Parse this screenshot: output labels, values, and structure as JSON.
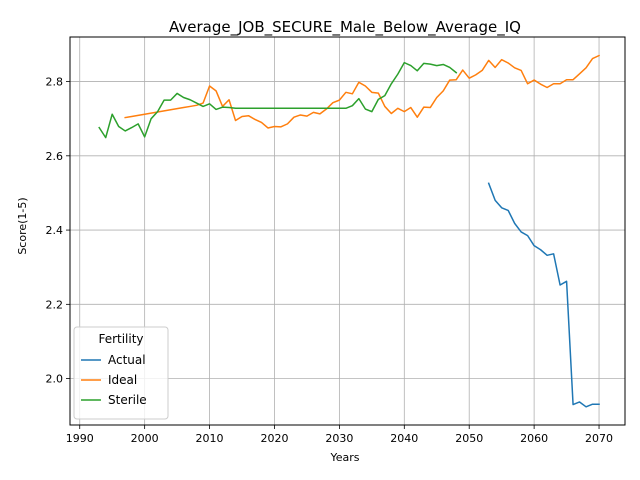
{
  "chart_data": {
    "type": "line",
    "title": "Average_JOB_SECURE_Male_Below_Average_IQ",
    "xlabel": "Years",
    "ylabel": "Score(1-5)",
    "xlim": [
      1988.5,
      2074.0
    ],
    "ylim": [
      1.875,
      2.92
    ],
    "x_ticks": [
      1990,
      2000,
      2010,
      2020,
      2030,
      2040,
      2050,
      2060,
      2070
    ],
    "y_ticks": [
      2.0,
      2.2,
      2.4,
      2.6,
      2.8
    ],
    "y_tick_labels": [
      "2.0",
      "2.2",
      "2.4",
      "2.6",
      "2.8"
    ],
    "grid": true,
    "legend": {
      "title": "Fertility",
      "position": "lower-left"
    },
    "series": [
      {
        "name": "Actual",
        "color": "#1f77b4",
        "points": [
          [
            2053,
            2.526
          ],
          [
            2054,
            2.48
          ],
          [
            2055,
            2.46
          ],
          [
            2056,
            2.453
          ],
          [
            2057,
            2.418
          ],
          [
            2058,
            2.395
          ],
          [
            2059,
            2.385
          ],
          [
            2060,
            2.358
          ],
          [
            2061,
            2.347
          ],
          [
            2062,
            2.332
          ],
          [
            2063,
            2.336
          ],
          [
            2064,
            2.252
          ],
          [
            2065,
            2.262
          ],
          [
            2066,
            1.93
          ],
          [
            2067,
            1.937
          ],
          [
            2068,
            1.924
          ],
          [
            2069,
            1.931
          ],
          [
            2070,
            1.931
          ]
        ]
      },
      {
        "name": "Ideal",
        "color": "#ff7f0e",
        "points": [
          [
            1997,
            2.703
          ],
          [
            1998,
            2.706
          ],
          [
            1999,
            2.709
          ],
          [
            2000,
            2.712
          ],
          [
            2001,
            2.715
          ],
          [
            2002,
            2.718
          ],
          [
            2003,
            2.721
          ],
          [
            2004,
            2.724
          ],
          [
            2005,
            2.727
          ],
          [
            2006,
            2.73
          ],
          [
            2007,
            2.733
          ],
          [
            2008,
            2.736
          ],
          [
            2009,
            2.742
          ],
          [
            2010,
            2.788
          ],
          [
            2011,
            2.775
          ],
          [
            2012,
            2.733
          ],
          [
            2013,
            2.751
          ],
          [
            2014,
            2.695
          ],
          [
            2015,
            2.706
          ],
          [
            2016,
            2.708
          ],
          [
            2017,
            2.698
          ],
          [
            2018,
            2.69
          ],
          [
            2019,
            2.675
          ],
          [
            2020,
            2.679
          ],
          [
            2021,
            2.678
          ],
          [
            2022,
            2.686
          ],
          [
            2023,
            2.704
          ],
          [
            2024,
            2.71
          ],
          [
            2025,
            2.707
          ],
          [
            2026,
            2.717
          ],
          [
            2027,
            2.713
          ],
          [
            2028,
            2.726
          ],
          [
            2029,
            2.743
          ],
          [
            2030,
            2.75
          ],
          [
            2031,
            2.771
          ],
          [
            2032,
            2.767
          ],
          [
            2033,
            2.798
          ],
          [
            2034,
            2.788
          ],
          [
            2035,
            2.771
          ],
          [
            2036,
            2.769
          ],
          [
            2037,
            2.733
          ],
          [
            2038,
            2.714
          ],
          [
            2039,
            2.728
          ],
          [
            2040,
            2.719
          ],
          [
            2041,
            2.73
          ],
          [
            2042,
            2.704
          ],
          [
            2043,
            2.731
          ],
          [
            2044,
            2.73
          ],
          [
            2045,
            2.757
          ],
          [
            2046,
            2.775
          ],
          [
            2047,
            2.804
          ],
          [
            2048,
            2.805
          ],
          [
            2049,
            2.831
          ],
          [
            2050,
            2.809
          ],
          [
            2051,
            2.818
          ],
          [
            2052,
            2.83
          ],
          [
            2053,
            2.857
          ],
          [
            2054,
            2.838
          ],
          [
            2055,
            2.859
          ],
          [
            2056,
            2.85
          ],
          [
            2057,
            2.837
          ],
          [
            2058,
            2.83
          ],
          [
            2059,
            2.794
          ],
          [
            2060,
            2.804
          ],
          [
            2061,
            2.793
          ],
          [
            2062,
            2.784
          ],
          [
            2063,
            2.794
          ],
          [
            2064,
            2.794
          ],
          [
            2065,
            2.805
          ],
          [
            2066,
            2.805
          ],
          [
            2067,
            2.821
          ],
          [
            2068,
            2.837
          ],
          [
            2069,
            2.862
          ],
          [
            2070,
            2.87
          ]
        ]
      },
      {
        "name": "Sterile",
        "color": "#2ca02c",
        "points": [
          [
            1993,
            2.676
          ],
          [
            1994,
            2.649
          ],
          [
            1995,
            2.712
          ],
          [
            1996,
            2.679
          ],
          [
            1997,
            2.667
          ],
          [
            1998,
            2.676
          ],
          [
            1999,
            2.686
          ],
          [
            2000,
            2.651
          ],
          [
            2001,
            2.7
          ],
          [
            2002,
            2.719
          ],
          [
            2003,
            2.75
          ],
          [
            2004,
            2.75
          ],
          [
            2005,
            2.768
          ],
          [
            2006,
            2.757
          ],
          [
            2007,
            2.751
          ],
          [
            2008,
            2.742
          ],
          [
            2009,
            2.733
          ],
          [
            2010,
            2.74
          ],
          [
            2011,
            2.725
          ],
          [
            2012,
            2.731
          ],
          [
            2013,
            2.73
          ],
          [
            2014,
            2.728
          ],
          [
            2015,
            2.728
          ],
          [
            2016,
            2.728
          ],
          [
            2017,
            2.728
          ],
          [
            2018,
            2.728
          ],
          [
            2019,
            2.728
          ],
          [
            2020,
            2.728
          ],
          [
            2021,
            2.728
          ],
          [
            2022,
            2.728
          ],
          [
            2023,
            2.728
          ],
          [
            2024,
            2.728
          ],
          [
            2025,
            2.728
          ],
          [
            2026,
            2.728
          ],
          [
            2027,
            2.728
          ],
          [
            2028,
            2.728
          ],
          [
            2029,
            2.728
          ],
          [
            2030,
            2.728
          ],
          [
            2031,
            2.728
          ],
          [
            2032,
            2.735
          ],
          [
            2033,
            2.754
          ],
          [
            2034,
            2.726
          ],
          [
            2035,
            2.719
          ],
          [
            2036,
            2.752
          ],
          [
            2037,
            2.762
          ],
          [
            2038,
            2.794
          ],
          [
            2039,
            2.82
          ],
          [
            2040,
            2.851
          ],
          [
            2041,
            2.843
          ],
          [
            2042,
            2.829
          ],
          [
            2043,
            2.849
          ],
          [
            2044,
            2.847
          ],
          [
            2045,
            2.843
          ],
          [
            2046,
            2.846
          ],
          [
            2047,
            2.838
          ],
          [
            2048,
            2.824
          ]
        ]
      }
    ]
  }
}
